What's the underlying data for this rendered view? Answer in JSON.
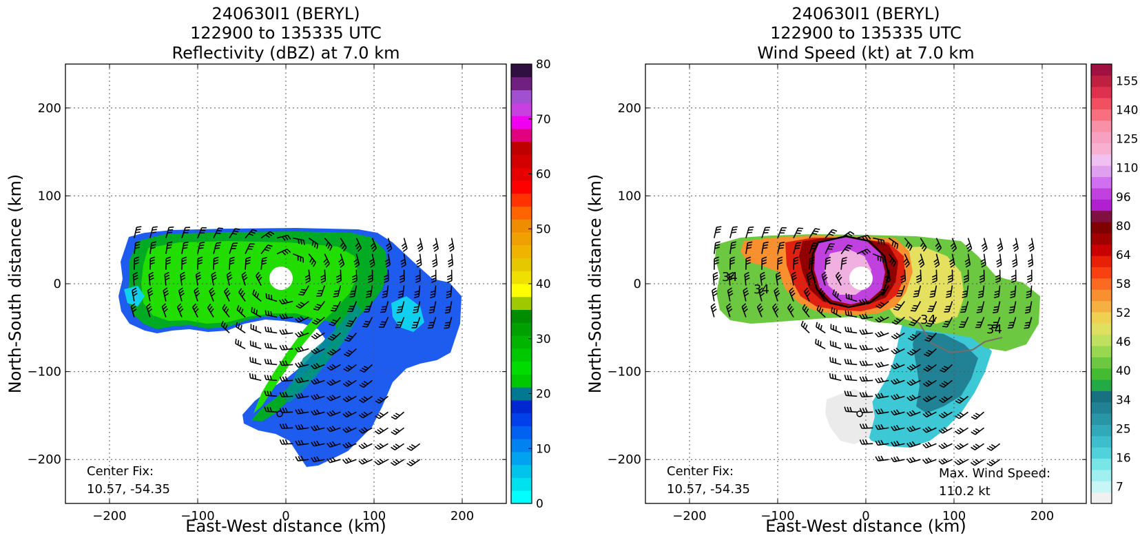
{
  "chart_data": [
    {
      "type": "heatmap",
      "title_lines": [
        "240630I1 (BERYL)",
        "122900 to 135335 UTC",
        "Reflectivity (dBZ) at 7.0 km"
      ],
      "xlabel": "East-West distance (km)",
      "ylabel": "North-South distance (km)",
      "xlim": [
        -250,
        250
      ],
      "ylim": [
        -250,
        250
      ],
      "xticks": [
        -200,
        -100,
        0,
        100,
        200
      ],
      "yticks": [
        -200,
        -100,
        0,
        100,
        200
      ],
      "xtick_labels": [
        "−200",
        "−100",
        "0",
        "100",
        "200"
      ],
      "ytick_labels": [
        "−200",
        "−100",
        "0",
        "100",
        "200"
      ],
      "grid": true,
      "field": "Reflectivity (dBZ)",
      "colorbar": {
        "min": 0,
        "max": 80,
        "step": 2.5,
        "tick_values": [
          0,
          10,
          20,
          30,
          40,
          50,
          60,
          70,
          80
        ],
        "tick_labels": [
          "0",
          "10",
          "20",
          "30",
          "40",
          "50",
          "60",
          "70",
          "80"
        ],
        "colors": [
          "#00ffff",
          "#00e1f0",
          "#00c4ec",
          "#00a3f0",
          "#0082f0",
          "#0060f0",
          "#0040e8",
          "#0028d0",
          "#007890",
          "#00c800",
          "#00dc00",
          "#00c800",
          "#00b400",
          "#00a000",
          "#008c00",
          "#a0c800",
          "#ffff00",
          "#f0e000",
          "#e6c800",
          "#f0b400",
          "#f0a000",
          "#f08c00",
          "#ff6400",
          "#ff3200",
          "#ff0000",
          "#e60000",
          "#d20000",
          "#be0000",
          "#e00080",
          "#f000f0",
          "#c840e0",
          "#a050d0",
          "#702080",
          "#301040"
        ]
      },
      "annotation_center_fix": [
        "Center Fix:",
        "10.57, -54.35"
      ],
      "center_marker": [
        -7,
        -148
      ]
    },
    {
      "type": "heatmap",
      "title_lines": [
        "240630I1 (BERYL)",
        "122900 to 135335 UTC",
        "Wind Speed (kt) at 7.0 km"
      ],
      "xlabel": "East-West distance (km)",
      "ylabel": "North-South distance (km)",
      "xlim": [
        -250,
        250
      ],
      "ylim": [
        -250,
        250
      ],
      "xticks": [
        -200,
        -100,
        0,
        100,
        200
      ],
      "yticks": [
        -200,
        -100,
        0,
        100,
        200
      ],
      "xtick_labels": [
        "−200",
        "−100",
        "0",
        "100",
        "200"
      ],
      "ytick_labels": [
        "−200",
        "−100",
        "0",
        "100",
        "200"
      ],
      "grid": true,
      "field": "Wind Speed (kt)",
      "colorbar": {
        "tick_labels": [
          "7",
          "16",
          "25",
          "34",
          "40",
          "46",
          "52",
          "58",
          "64",
          "80",
          "96",
          "110",
          "125",
          "140",
          "155"
        ],
        "colors": [
          "#f0f0f0",
          "#c8f5f5",
          "#a0f0f0",
          "#78e6e6",
          "#50d2dc",
          "#3cbecc",
          "#30aab8",
          "#2896a6",
          "#208294",
          "#187080",
          "#22aa44",
          "#44bb33",
          "#6cc840",
          "#98d850",
          "#c0e060",
          "#e0e060",
          "#f0d050",
          "#f4b040",
          "#f89030",
          "#fa6a20",
          "#f84010",
          "#e82008",
          "#c80000",
          "#a00000",
          "#800000",
          "#801040",
          "#b020d0",
          "#c040e0",
          "#d070f0",
          "#e0a0f0",
          "#f0c0f0",
          "#f8b0d0",
          "#f8a0c0",
          "#f890a8",
          "#f87080",
          "#f05060",
          "#e03050",
          "#c02040",
          "#a01040"
        ]
      },
      "contour_labels": [
        "34",
        "34",
        "34",
        "34"
      ],
      "annotation_center_fix": [
        "Center Fix:",
        "10.57, -54.35"
      ],
      "annotation_max_wind": [
        "Max. Wind Speed:",
        "110.2 kt"
      ],
      "center_marker": [
        -7,
        -148
      ]
    }
  ]
}
